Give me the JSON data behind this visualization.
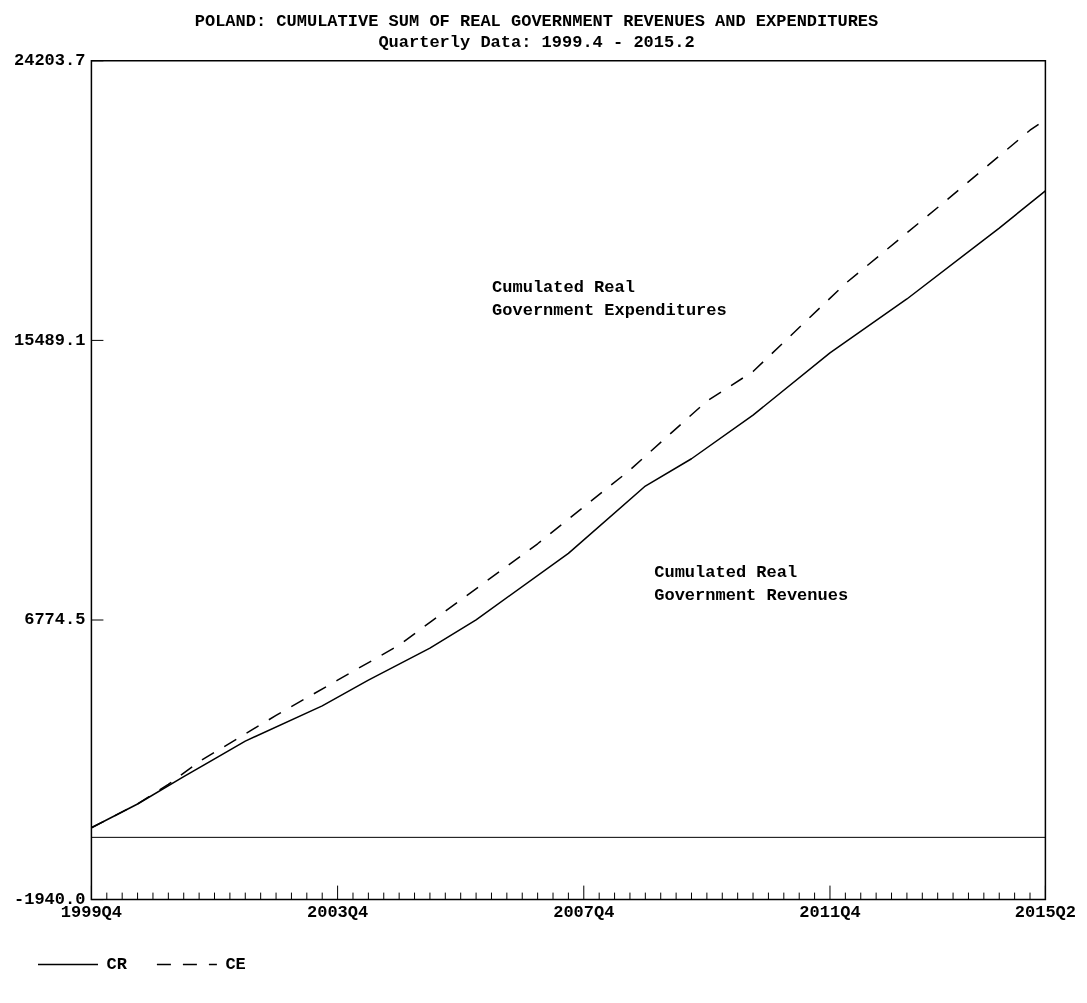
{
  "chart_data": {
    "type": "line",
    "title": "POLAND: CUMULATIVE SUM OF REAL GOVERNMENT REVENUES AND EXPENDITURES",
    "subtitle": "Quarterly Data: 1999.4 - 2015.2",
    "categories": [
      "1999Q4",
      null,
      null,
      null,
      null,
      null,
      null,
      null,
      null,
      null,
      null,
      null,
      null,
      null,
      null,
      null,
      "2003Q4",
      null,
      null,
      null,
      null,
      null,
      null,
      null,
      null,
      null,
      null,
      null,
      null,
      null,
      null,
      null,
      "2007Q4",
      null,
      null,
      null,
      null,
      null,
      null,
      null,
      null,
      null,
      null,
      null,
      null,
      null,
      null,
      null,
      "2011Q4",
      null,
      null,
      null,
      null,
      null,
      null,
      null,
      null,
      null,
      null,
      null,
      null,
      null,
      "2015Q2"
    ],
    "ylim": [
      -1940,
      24203.7
    ],
    "yticks": [
      {
        "value": -1940,
        "label": "-1940.0"
      },
      6774.5,
      15489.1,
      24203.7
    ],
    "grid": false,
    "legend": "bottom left",
    "marker": "none",
    "ref_lines": [
      {
        "axis": "y",
        "value": 0,
        "color": "#000000",
        "line_style": "solid"
      }
    ],
    "annotations": [
      "Cumulated Real\nGovernment Expenditures",
      "Cumulated Real\nGovernment Revenues"
    ],
    "series": [
      {
        "name": "CR",
        "color": "#000000",
        "line_style": "solid",
        "values": [
          300,
          null,
          null,
          1040,
          null,
          null,
          1890,
          null,
          null,
          null,
          3000,
          null,
          null,
          null,
          null,
          4100,
          null,
          null,
          4900,
          null,
          null,
          null,
          5900,
          null,
          null,
          6780,
          null,
          null,
          null,
          null,
          null,
          8850,
          null,
          null,
          null,
          null,
          10950,
          null,
          null,
          11800,
          null,
          null,
          null,
          13160,
          null,
          null,
          null,
          null,
          15100,
          null,
          null,
          null,
          null,
          16780,
          null,
          null,
          null,
          null,
          null,
          18990,
          null,
          null,
          20150
        ]
      },
      {
        "name": "CE",
        "color": "#000000",
        "line_style": "dashed",
        "values": [
          300,
          null,
          null,
          1040,
          null,
          1650,
          null,
          2360,
          null,
          null,
          null,
          null,
          3800,
          null,
          null,
          null,
          4900,
          null,
          null,
          null,
          5990,
          null,
          6700,
          null,
          null,
          null,
          null,
          null,
          null,
          9150,
          null,
          null,
          null,
          null,
          null,
          11450,
          null,
          null,
          null,
          null,
          13600,
          null,
          null,
          14520,
          null,
          null,
          null,
          null,
          null,
          17260,
          null,
          null,
          null,
          null,
          null,
          19630,
          null,
          null,
          null,
          null,
          null,
          22040,
          22370
        ]
      }
    ]
  }
}
